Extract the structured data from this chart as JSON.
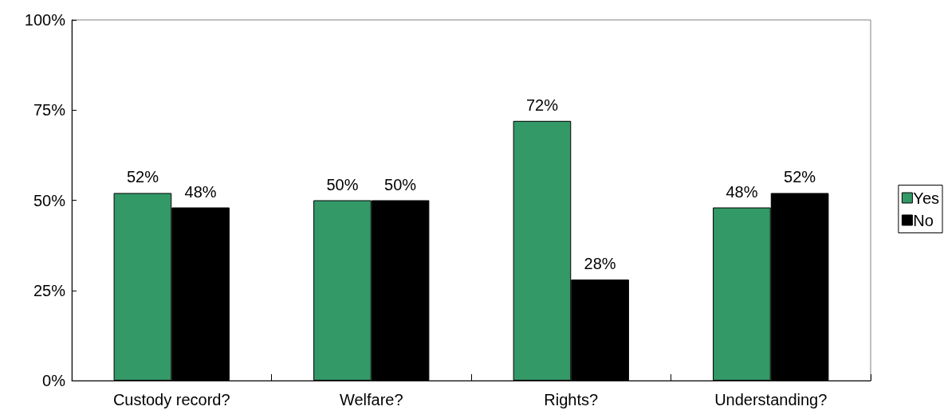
{
  "chart_data": {
    "type": "bar",
    "categories": [
      "Custody record?",
      "Welfare?",
      "Rights?",
      "Understanding?"
    ],
    "series": [
      {
        "name": "Yes",
        "color": "#339966",
        "values": [
          52,
          50,
          72,
          48
        ],
        "value_labels": [
          "52%",
          "50%",
          "72%",
          "48%"
        ]
      },
      {
        "name": "No",
        "color": "#000000",
        "values": [
          48,
          50,
          28,
          52
        ],
        "value_labels": [
          "48%",
          "50%",
          "28%",
          "52%"
        ]
      }
    ],
    "ylim": [
      0,
      100
    ],
    "yticks": [
      {
        "value": 0,
        "label": "0%"
      },
      {
        "value": 25,
        "label": "25%"
      },
      {
        "value": 50,
        "label": "50%"
      },
      {
        "value": 75,
        "label": "75%"
      },
      {
        "value": 100,
        "label": "100%"
      }
    ],
    "grid": false,
    "legend": "right"
  }
}
